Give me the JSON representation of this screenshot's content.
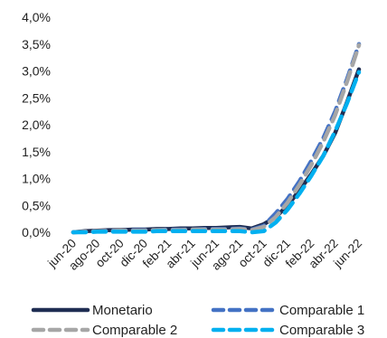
{
  "chart_data": {
    "type": "line",
    "title": "",
    "xlabel": "",
    "ylabel": "",
    "x": [
      "2020-06",
      "2020-07",
      "2020-08",
      "2020-09",
      "2020-10",
      "2020-11",
      "2020-12",
      "2021-01",
      "2021-02",
      "2021-03",
      "2021-04",
      "2021-05",
      "2021-06",
      "2021-07",
      "2021-08",
      "2021-09",
      "2021-10",
      "2021-11",
      "2021-12",
      "2022-01",
      "2022-02",
      "2022-03",
      "2022-04",
      "2022-05",
      "2022-06"
    ],
    "x_tick_labels": [
      "jun-20",
      "ago-20",
      "oct-20",
      "dic-20",
      "feb-21",
      "abr-21",
      "jun-21",
      "ago-21",
      "oct-21",
      "dic-21",
      "feb-22",
      "abr-22",
      "jun-22"
    ],
    "y_tick_labels": [
      "0,0%",
      "0,5%",
      "1,0%",
      "1,5%",
      "2,0%",
      "2,5%",
      "3,0%",
      "3,5%",
      "4,0%"
    ],
    "ylim": [
      0,
      4.0
    ],
    "y_unit": "%",
    "grid": false,
    "legend_position": "bottom",
    "series": [
      {
        "name": "Monetario",
        "color": "#1f2d52",
        "dash": "solid",
        "values": [
          0.0,
          0.02,
          0.03,
          0.04,
          0.04,
          0.05,
          0.05,
          0.06,
          0.06,
          0.07,
          0.07,
          0.08,
          0.08,
          0.09,
          0.1,
          0.07,
          0.15,
          0.28,
          0.5,
          0.78,
          1.08,
          1.42,
          1.85,
          2.42,
          3.03
        ]
      },
      {
        "name": "Comparable 1",
        "color": "#4472c4",
        "dash": "dashed",
        "values": [
          0.0,
          0.01,
          0.02,
          0.03,
          0.03,
          0.04,
          0.04,
          0.04,
          0.05,
          0.05,
          0.05,
          0.06,
          0.06,
          0.06,
          0.07,
          0.05,
          0.12,
          0.35,
          0.62,
          0.95,
          1.33,
          1.75,
          2.25,
          2.85,
          3.5
        ]
      },
      {
        "name": "Comparable 2",
        "color": "#a6a6a6",
        "dash": "dashed",
        "values": [
          0.0,
          0.01,
          0.02,
          0.02,
          0.03,
          0.03,
          0.03,
          0.04,
          0.04,
          0.04,
          0.05,
          0.05,
          0.05,
          0.05,
          0.06,
          0.04,
          0.1,
          0.28,
          0.55,
          0.88,
          1.25,
          1.68,
          2.18,
          2.8,
          3.48
        ]
      },
      {
        "name": "Comparable 3",
        "color": "#00b0f0",
        "dash": "dashed",
        "values": [
          0.0,
          0.0,
          0.01,
          0.01,
          0.01,
          0.01,
          0.01,
          0.02,
          0.02,
          0.02,
          0.02,
          0.02,
          0.02,
          0.02,
          0.02,
          0.0,
          0.02,
          0.18,
          0.42,
          0.72,
          1.05,
          1.42,
          1.88,
          2.4,
          2.98
        ]
      }
    ]
  }
}
